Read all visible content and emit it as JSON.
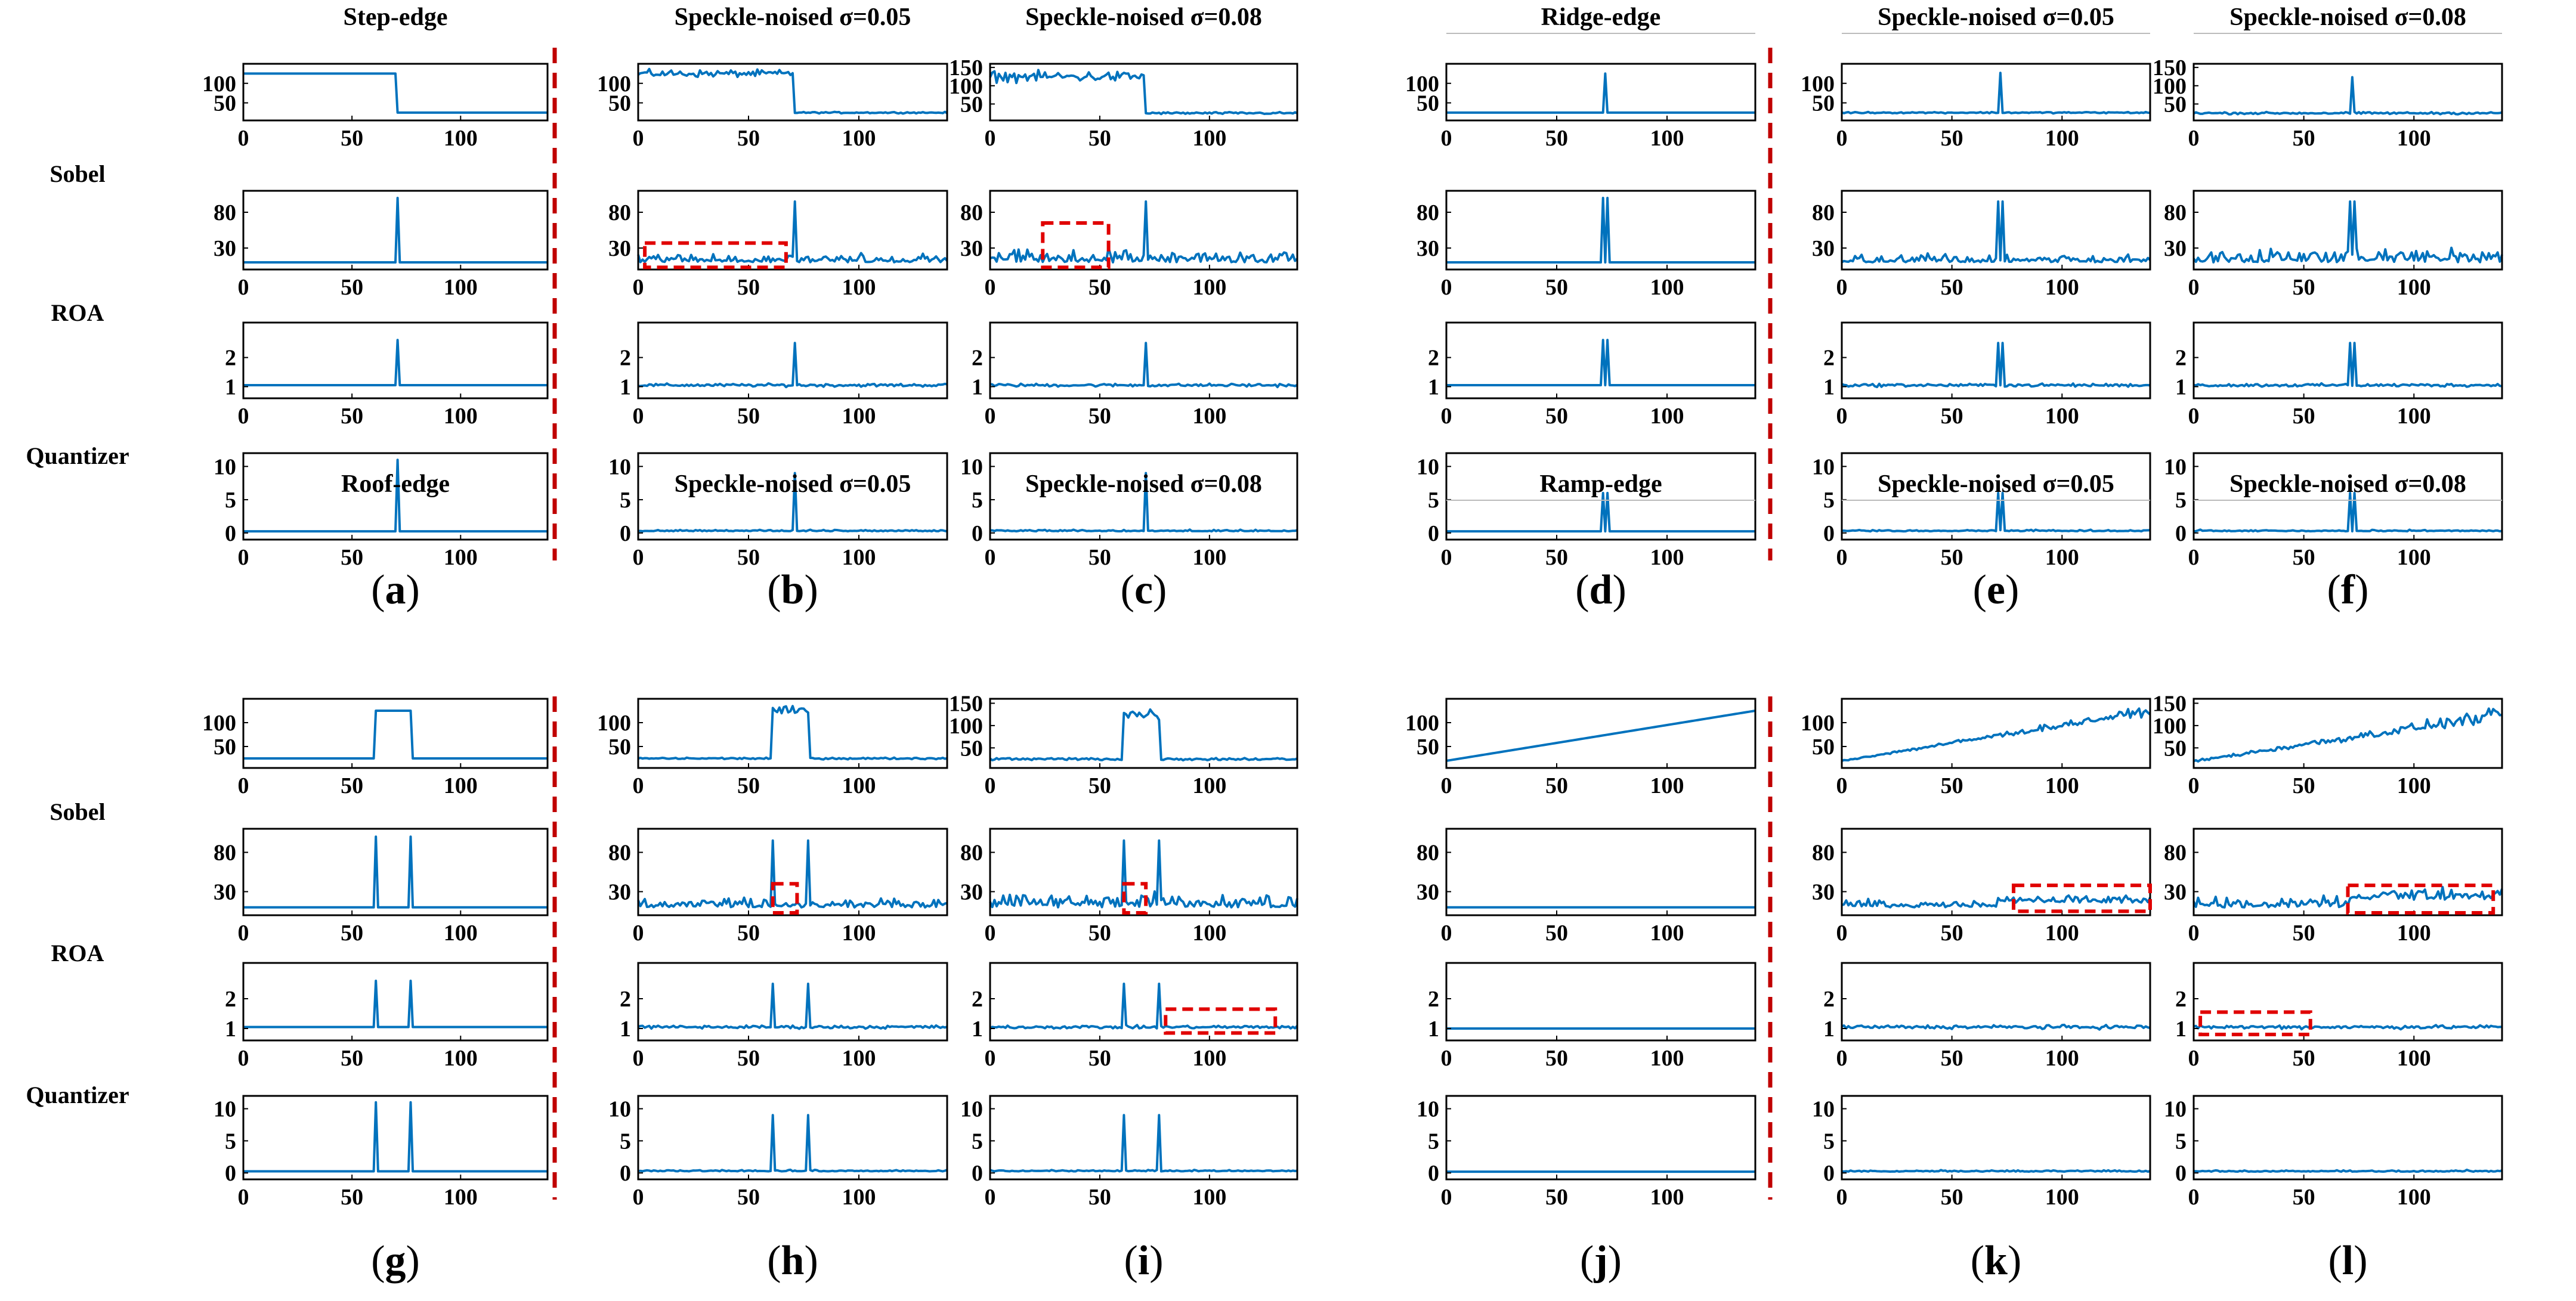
{
  "row_labels": [
    "Sobel",
    "ROA",
    "Quantizer"
  ],
  "colors": {
    "line": "#0072BD",
    "divider": "#C00000",
    "highlight": "#E00000",
    "axis": "#000000"
  },
  "chart_data": [
    {
      "panel": "a",
      "title": "Step-edge",
      "edge": "step",
      "sigma": 0
    },
    {
      "panel": "b",
      "title": "Speckle-noised σ=0.05",
      "edge": "step",
      "sigma": 0.05
    },
    {
      "panel": "c",
      "title": "Speckle-noised σ=0.08",
      "edge": "step",
      "sigma": 0.08
    },
    {
      "panel": "d",
      "title": "Ridge-edge",
      "edge": "ridge",
      "sigma": 0
    },
    {
      "panel": "e",
      "title": "Speckle-noised σ=0.05",
      "edge": "ridge",
      "sigma": 0.05
    },
    {
      "panel": "f",
      "title": "Speckle-noised σ=0.08",
      "edge": "ridge",
      "sigma": 0.08
    },
    {
      "panel": "g",
      "title": "Roof-edge",
      "edge": "roof",
      "sigma": 0
    },
    {
      "panel": "h",
      "title": "Speckle-noised σ=0.05",
      "edge": "roof",
      "sigma": 0.05
    },
    {
      "panel": "i",
      "title": "Speckle-noised σ=0.08",
      "edge": "roof",
      "sigma": 0.08
    },
    {
      "panel": "j",
      "title": "Ramp-edge",
      "edge": "ramp",
      "sigma": 0
    },
    {
      "panel": "k",
      "title": "Speckle-noised σ=0.05",
      "edge": "ramp",
      "sigma": 0.05
    },
    {
      "panel": "l",
      "title": "Speckle-noised σ=0.08",
      "edge": "ramp",
      "sigma": 0.08
    }
  ],
  "subplot_axes": {
    "type": "line",
    "x_range": [
      0,
      140
    ],
    "x_ticks": [
      0,
      50,
      100
    ],
    "profile": {
      "step": [
        [
          50,
          100
        ],
        [
          150,
          50,
          100
        ]
      ],
      "ridge": [
        [
          50,
          100
        ],
        [
          150,
          50,
          100
        ]
      ],
      "roof": [
        [
          50,
          100
        ],
        [
          150,
          50,
          100
        ]
      ],
      "ramp": [
        [
          50,
          100
        ],
        [
          150,
          50,
          100
        ]
      ]
    },
    "sobel_ticks": [
      30,
      80
    ],
    "roa_ticks": [
      1,
      2
    ],
    "quantizer_ticks": [
      0,
      5,
      10
    ]
  },
  "signals": {
    "step": {
      "left_level": 125,
      "right_level": 25,
      "edge_at": 71
    },
    "ridge": {
      "base": 25,
      "peak": 125,
      "peak_at": 72
    },
    "roof": {
      "base": 25,
      "plateau": 125,
      "plateau_range": [
        61,
        77
      ]
    },
    "ramp": {
      "start": 20,
      "end": 125
    }
  },
  "highlights": [
    {
      "panel": "b",
      "subplot": "sobel",
      "x_range": [
        3,
        67
      ],
      "y_range": [
        3,
        37
      ]
    },
    {
      "panel": "c",
      "subplot": "sobel",
      "x_range": [
        24,
        54
      ],
      "y_range": [
        3,
        65
      ]
    },
    {
      "panel": "h",
      "subplot": "sobel",
      "x_range": [
        61,
        72
      ],
      "y_range": [
        3,
        40
      ]
    },
    {
      "panel": "i",
      "subplot": "sobel",
      "x_range": [
        61,
        71
      ],
      "y_range": [
        3,
        40
      ]
    },
    {
      "panel": "i",
      "subplot": "roa",
      "x_range": [
        80,
        130
      ],
      "y_range": [
        0.85,
        1.65
      ]
    },
    {
      "panel": "k",
      "subplot": "sobel",
      "x_range": [
        78,
        140
      ],
      "y_range": [
        5,
        38
      ]
    },
    {
      "panel": "l",
      "subplot": "sobel",
      "x_range": [
        70,
        136
      ],
      "y_range": [
        3,
        38
      ]
    },
    {
      "panel": "l",
      "subplot": "roa",
      "x_range": [
        3,
        53
      ],
      "y_range": [
        0.8,
        1.55
      ]
    }
  ]
}
